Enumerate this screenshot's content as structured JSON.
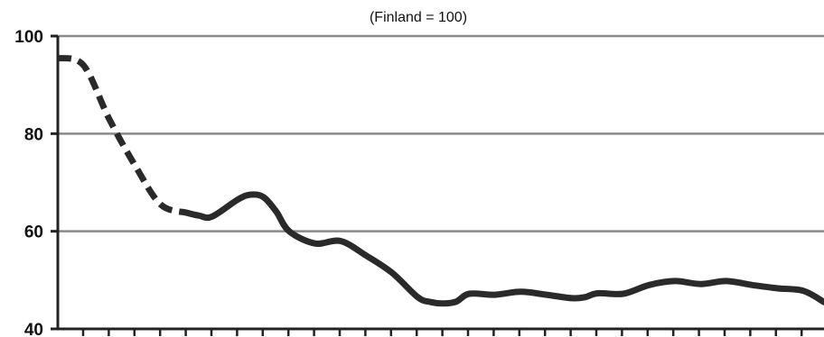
{
  "chart_data": {
    "type": "line",
    "title": "",
    "subtitle": "(Finland = 100)",
    "xlabel": "",
    "ylabel": "",
    "ylim": [
      40,
      100
    ],
    "xlim": [
      0,
      29.8
    ],
    "y_ticks": [
      "40",
      "60",
      "80",
      "100"
    ],
    "grid": "horizontal",
    "x_tick_marks": 30,
    "series": [
      {
        "style": "dashed",
        "x": [
          0,
          1,
          2,
          3,
          4,
          5
        ],
        "y": [
          95.5,
          94,
          83,
          73.5,
          65.5,
          63.8
        ]
      },
      {
        "style": "solid",
        "x": [
          5,
          5.5,
          6,
          7,
          7.5,
          8,
          8.5,
          9,
          10,
          11,
          12,
          13,
          14,
          14.5,
          15,
          15.5,
          16,
          17,
          18,
          19,
          20,
          20.5,
          21,
          22,
          23,
          24,
          25,
          26,
          27,
          28,
          29,
          29.8
        ],
        "y": [
          63.8,
          63.2,
          63,
          66.5,
          67.5,
          67,
          64,
          60,
          57.5,
          58,
          55,
          51.5,
          46.5,
          45.5,
          45.2,
          45.6,
          47.2,
          47,
          47.6,
          47,
          46.3,
          46.5,
          47.3,
          47.2,
          49,
          49.8,
          49.2,
          49.8,
          49,
          48.3,
          47.8,
          45.5
        ]
      }
    ]
  }
}
